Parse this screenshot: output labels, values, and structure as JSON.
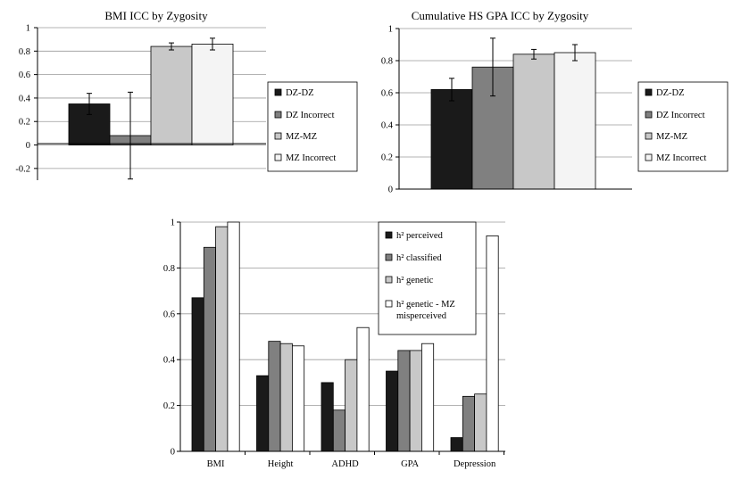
{
  "chart_data": [
    {
      "type": "bar",
      "title": "BMI ICC by Zygosity",
      "categories": [
        ""
      ],
      "series": [
        {
          "name": "DZ-DZ",
          "values": [
            0.35
          ],
          "err": [
            0.09
          ],
          "color": "#1a1a1a"
        },
        {
          "name": "DZ Incorrect",
          "values": [
            0.08
          ],
          "err": [
            0.37
          ],
          "color": "#808080"
        },
        {
          "name": "MZ-MZ",
          "values": [
            0.84
          ],
          "err": [
            0.03
          ],
          "color": "#c8c8c8"
        },
        {
          "name": "MZ Incorrect",
          "values": [
            0.86
          ],
          "err": [
            0.05
          ],
          "color": "#f4f4f4"
        }
      ],
      "ylim": [
        -0.3,
        1
      ],
      "yticks": [
        "-0.2",
        "0",
        "0.2",
        "0.4",
        "0.6",
        "0.8",
        "1"
      ],
      "grid": true,
      "legend_position": "right"
    },
    {
      "type": "bar",
      "title": "Cumulative HS GPA ICC by Zygosity",
      "categories": [
        ""
      ],
      "series": [
        {
          "name": "DZ-DZ",
          "values": [
            0.62
          ],
          "err": [
            0.07
          ],
          "color": "#1a1a1a"
        },
        {
          "name": "DZ Incorrect",
          "values": [
            0.76
          ],
          "err": [
            0.18
          ],
          "color": "#808080"
        },
        {
          "name": "MZ-MZ",
          "values": [
            0.84
          ],
          "err": [
            0.03
          ],
          "color": "#c8c8c8"
        },
        {
          "name": "MZ Incorrect",
          "values": [
            0.85
          ],
          "err": [
            0.05
          ],
          "color": "#f4f4f4"
        }
      ],
      "ylim": [
        0,
        1
      ],
      "yticks": [
        "0",
        "0.2",
        "0.4",
        "0.6",
        "0.8",
        "1"
      ],
      "grid": true,
      "legend_position": "right"
    },
    {
      "type": "bar",
      "title": "",
      "categories": [
        "BMI",
        "Height",
        "ADHD",
        "GPA",
        "Depression"
      ],
      "series": [
        {
          "name": "h² perceived",
          "values": [
            0.67,
            0.33,
            0.3,
            0.35,
            0.06
          ],
          "color": "#1a1a1a"
        },
        {
          "name": "h² classified",
          "values": [
            0.89,
            0.48,
            0.18,
            0.44,
            0.24
          ],
          "color": "#808080"
        },
        {
          "name": "h² genetic",
          "values": [
            0.98,
            0.47,
            0.4,
            0.44,
            0.25
          ],
          "color": "#c8c8c8"
        },
        {
          "name": "h² genetic - MZ misperceived",
          "values": [
            1.0,
            0.46,
            0.54,
            0.47,
            0.94
          ],
          "color": "#ffffff"
        }
      ],
      "ylim": [
        0,
        1
      ],
      "yticks": [
        "0",
        "0.2",
        "0.4",
        "0.6",
        "0.8",
        "1"
      ],
      "grid": true,
      "legend_position": "top-right inside"
    }
  ]
}
